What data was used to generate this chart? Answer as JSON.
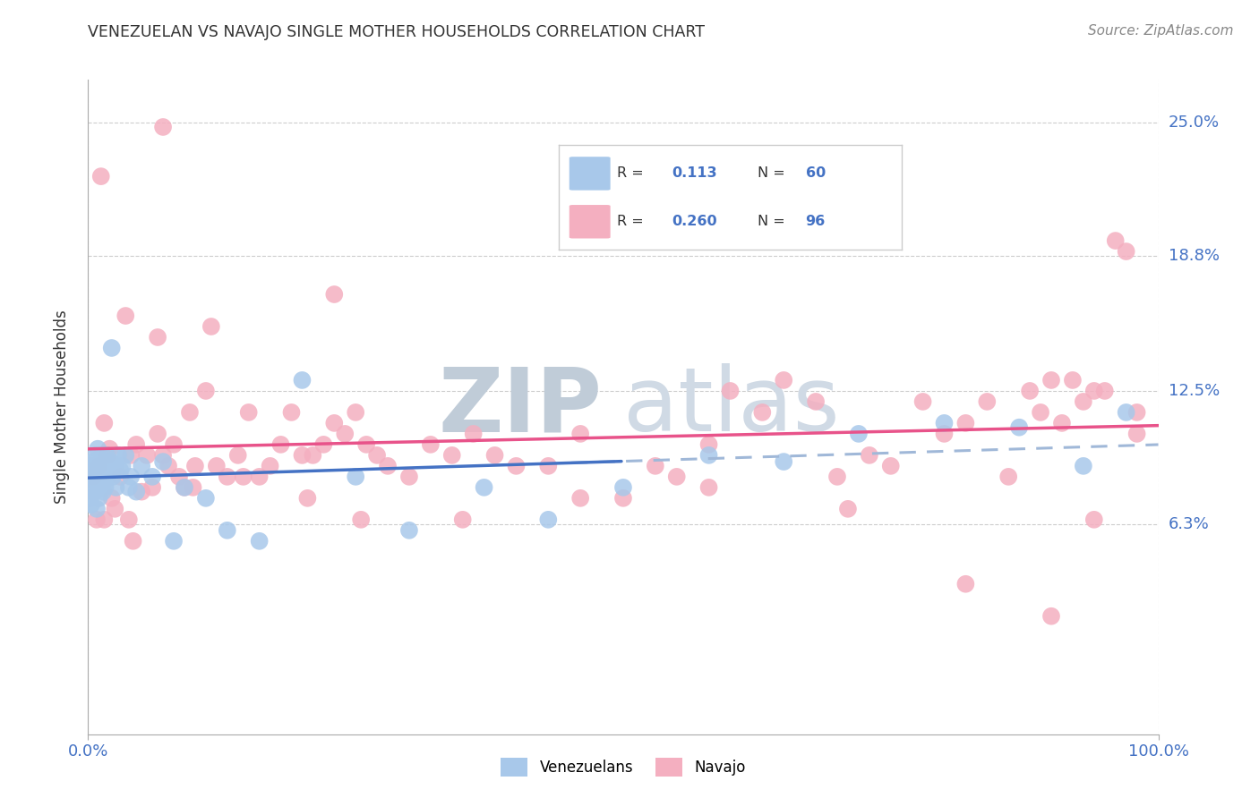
{
  "title": "VENEZUELAN VS NAVAJO SINGLE MOTHER HOUSEHOLDS CORRELATION CHART",
  "source": "Source: ZipAtlas.com",
  "ylabel": "Single Mother Households",
  "xlim": [
    0,
    100
  ],
  "ylim": [
    -3.5,
    27
  ],
  "ytick_labels": [
    "6.3%",
    "12.5%",
    "18.8%",
    "25.0%"
  ],
  "ytick_values": [
    6.3,
    12.5,
    18.8,
    25.0
  ],
  "xtick_labels": [
    "0.0%",
    "100.0%"
  ],
  "xtick_values": [
    0,
    100
  ],
  "color_venezuelan": "#a8c8ea",
  "color_navajo": "#f4afc0",
  "line_color_venezuelan": "#4472c4",
  "line_color_navajo": "#e8538a",
  "line_color_dashed": "#a0b8d8",
  "watermark_zip": "#c8d8e8",
  "watermark_atlas": "#c0ccd8",
  "background_color": "#ffffff",
  "grid_color": "#c8c8c8",
  "venezuelan_x": [
    0.1,
    0.2,
    0.2,
    0.3,
    0.3,
    0.4,
    0.5,
    0.5,
    0.6,
    0.7,
    0.8,
    0.8,
    0.9,
    1.0,
    1.0,
    1.1,
    1.2,
    1.3,
    1.3,
    1.4,
    1.5,
    1.5,
    1.6,
    1.7,
    1.8,
    1.9,
    2.0,
    2.1,
    2.2,
    2.3,
    2.5,
    2.6,
    2.8,
    3.0,
    3.2,
    3.5,
    3.8,
    4.0,
    4.5,
    5.0,
    6.0,
    7.0,
    8.0,
    9.0,
    11.0,
    13.0,
    16.0,
    20.0,
    25.0,
    30.0,
    37.0,
    43.0,
    50.0,
    58.0,
    65.0,
    72.0,
    80.0,
    87.0,
    93.0,
    97.0
  ],
  "venezuelan_y": [
    8.5,
    9.0,
    7.5,
    8.8,
    7.2,
    8.0,
    9.2,
    8.5,
    7.8,
    9.5,
    8.2,
    7.0,
    9.8,
    8.5,
    7.5,
    9.0,
    8.8,
    8.0,
    9.5,
    7.8,
    8.5,
    9.2,
    8.0,
    9.5,
    8.5,
    9.0,
    8.8,
    9.2,
    14.5,
    8.5,
    9.0,
    8.0,
    9.5,
    8.8,
    9.0,
    9.5,
    8.0,
    8.5,
    7.8,
    9.0,
    8.5,
    9.2,
    5.5,
    8.0,
    7.5,
    6.0,
    5.5,
    13.0,
    8.5,
    6.0,
    8.0,
    6.5,
    8.0,
    9.5,
    9.2,
    10.5,
    11.0,
    10.8,
    9.0,
    11.5
  ],
  "navajo_x": [
    0.5,
    1.0,
    1.2,
    1.5,
    1.8,
    2.0,
    2.5,
    3.0,
    3.5,
    4.0,
    4.5,
    5.0,
    5.5,
    6.0,
    6.5,
    7.0,
    7.5,
    8.0,
    8.5,
    9.0,
    9.5,
    10.0,
    11.0,
    12.0,
    13.0,
    14.0,
    15.0,
    16.0,
    17.0,
    18.0,
    19.0,
    20.0,
    21.0,
    22.0,
    23.0,
    24.0,
    25.0,
    26.0,
    27.0,
    28.0,
    30.0,
    32.0,
    34.0,
    36.0,
    38.0,
    40.0,
    43.0,
    46.0,
    50.0,
    53.0,
    55.0,
    58.0,
    60.0,
    63.0,
    65.0,
    68.0,
    70.0,
    73.0,
    75.0,
    78.0,
    80.0,
    82.0,
    84.0,
    86.0,
    88.0,
    89.0,
    90.0,
    91.0,
    92.0,
    93.0,
    94.0,
    95.0,
    96.0,
    97.0,
    98.0,
    1.5,
    3.8,
    6.5,
    9.8,
    14.5,
    20.5,
    25.5,
    35.0,
    46.0,
    58.0,
    71.0,
    82.0,
    90.0,
    94.0,
    98.0,
    0.8,
    2.2,
    4.2,
    7.0,
    11.5,
    23.0
  ],
  "navajo_y": [
    8.5,
    9.0,
    22.5,
    11.0,
    9.5,
    9.8,
    7.0,
    8.5,
    16.0,
    9.5,
    10.0,
    7.8,
    9.5,
    8.0,
    10.5,
    9.5,
    9.0,
    10.0,
    8.5,
    8.0,
    11.5,
    9.0,
    12.5,
    9.0,
    8.5,
    9.5,
    11.5,
    8.5,
    9.0,
    10.0,
    11.5,
    9.5,
    9.5,
    10.0,
    11.0,
    10.5,
    11.5,
    10.0,
    9.5,
    9.0,
    8.5,
    10.0,
    9.5,
    10.5,
    9.5,
    9.0,
    9.0,
    10.5,
    7.5,
    9.0,
    8.5,
    10.0,
    12.5,
    11.5,
    13.0,
    12.0,
    8.5,
    9.5,
    9.0,
    12.0,
    10.5,
    11.0,
    12.0,
    8.5,
    12.5,
    11.5,
    13.0,
    11.0,
    13.0,
    12.0,
    12.5,
    12.5,
    19.5,
    19.0,
    11.5,
    6.5,
    6.5,
    15.0,
    8.0,
    8.5,
    7.5,
    6.5,
    6.5,
    7.5,
    8.0,
    7.0,
    3.5,
    2.0,
    6.5,
    10.5,
    6.5,
    7.5,
    5.5,
    24.8,
    15.5,
    17.0
  ],
  "ven_line_x0": 0,
  "ven_line_x1": 100,
  "nav_line_x0": 0,
  "nav_line_x1": 100
}
